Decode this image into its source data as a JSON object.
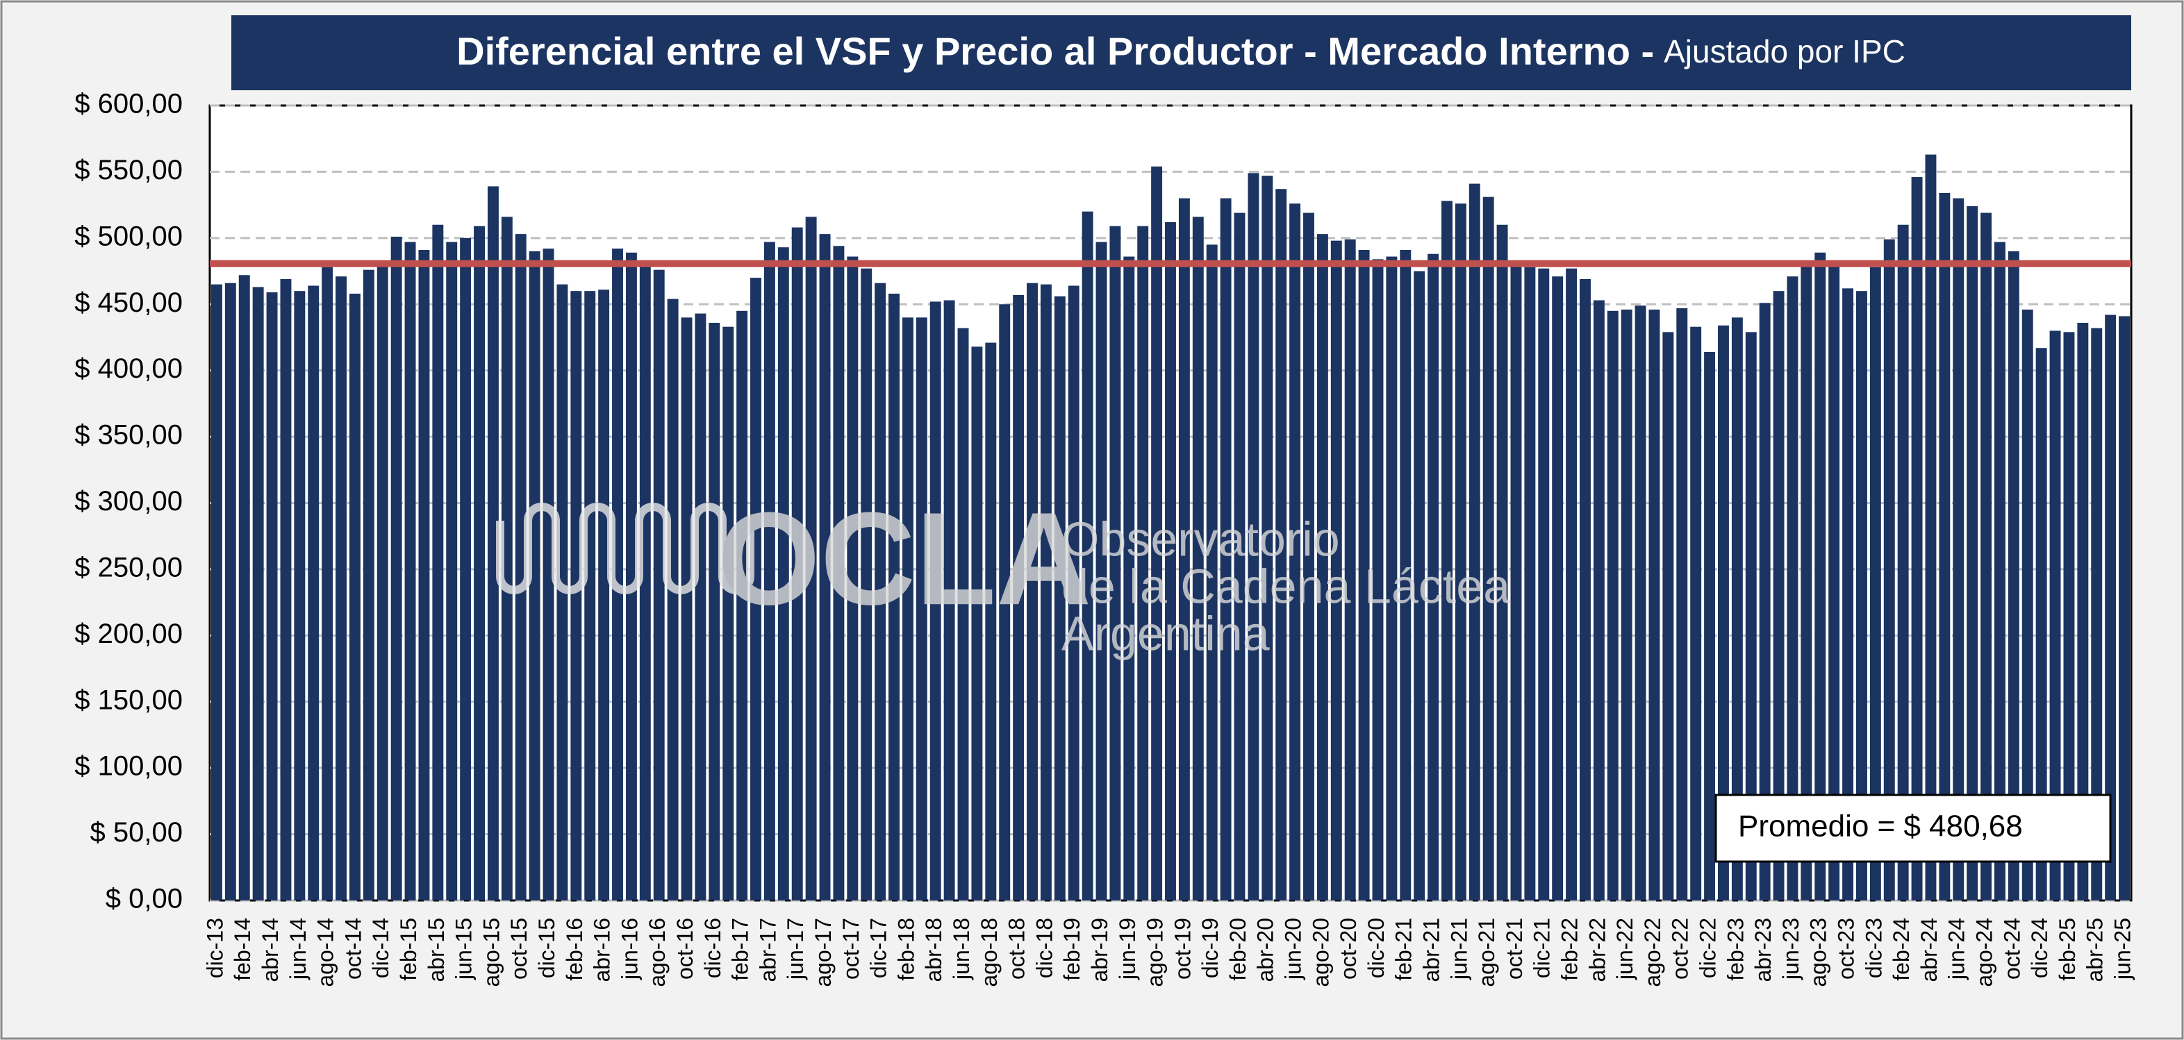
{
  "chart_data": {
    "type": "bar",
    "title": "Diferencial entre el VSF y Precio al Productor - Mercado Interno -",
    "subtitle": "Ajustado por IPC",
    "categories": [
      "dic-13",
      null,
      "feb-14",
      null,
      "abr-14",
      null,
      "jun-14",
      null,
      "ago-14",
      null,
      "oct-14",
      null,
      "dic-14",
      null,
      "feb-15",
      null,
      "abr-15",
      null,
      "jun-15",
      null,
      "ago-15",
      null,
      "oct-15",
      null,
      "dic-15",
      null,
      "feb-16",
      null,
      "abr-16",
      null,
      "jun-16",
      null,
      "ago-16",
      null,
      "oct-16",
      null,
      "dic-16",
      null,
      "feb-17",
      null,
      "abr-17",
      null,
      "jun-17",
      null,
      "ago-17",
      null,
      "oct-17",
      null,
      "dic-17",
      null,
      "feb-18",
      null,
      "abr-18",
      null,
      "jun-18",
      null,
      "ago-18",
      null,
      "oct-18",
      null,
      "dic-18",
      null,
      "feb-19",
      null,
      "abr-19",
      null,
      "jun-19",
      null,
      "ago-19",
      null,
      "oct-19",
      null,
      "dic-19",
      null,
      "feb-20",
      null,
      "abr-20",
      null,
      "jun-20",
      null,
      "ago-20",
      null,
      "oct-20",
      null,
      "dic-20",
      null,
      "feb-21",
      null,
      "abr-21",
      null,
      "jun-21",
      null,
      "ago-21",
      null,
      "oct-21",
      null,
      "dic-21",
      null,
      "feb-22",
      null,
      "abr-22",
      null,
      "jun-22",
      null,
      "ago-22",
      null,
      "oct-22",
      null,
      "dic-22",
      null,
      "feb-23",
      null,
      "abr-23",
      null,
      "jun-23",
      null,
      "ago-23",
      null,
      "oct-23",
      null,
      "dic-23",
      null,
      "feb-24",
      null,
      "abr-24",
      null,
      "jun-24",
      null,
      "ago-24",
      null,
      "oct-24",
      null,
      "dic-24",
      null,
      "feb-25",
      null,
      "abr-25",
      null,
      "jun-25"
    ],
    "values": [
      465,
      466,
      472,
      463,
      459,
      469,
      460,
      464,
      478,
      471,
      458,
      476,
      480,
      501,
      497,
      491,
      510,
      497,
      500,
      509,
      539,
      516,
      503,
      490,
      492,
      465,
      460,
      460,
      461,
      492,
      489,
      482,
      476,
      454,
      440,
      443,
      436,
      433,
      445,
      470,
      497,
      493,
      508,
      516,
      503,
      494,
      486,
      477,
      466,
      458,
      440,
      440,
      452,
      453,
      432,
      418,
      421,
      450,
      457,
      466,
      465,
      456,
      464,
      520,
      497,
      509,
      486,
      509,
      554,
      512,
      530,
      516,
      495,
      530,
      519,
      549,
      547,
      537,
      526,
      519,
      503,
      498,
      499,
      491,
      484,
      486,
      491,
      475,
      488,
      528,
      526,
      541,
      531,
      510,
      480,
      478,
      477,
      471,
      477,
      469,
      453,
      445,
      446,
      449,
      446,
      429,
      447,
      433,
      414,
      434,
      440,
      429,
      451,
      460,
      471,
      482,
      489,
      480,
      462,
      460,
      478,
      499,
      510,
      546,
      563,
      534,
      530,
      524,
      519,
      497,
      490,
      446,
      417,
      430,
      429,
      436,
      432,
      442,
      441
    ],
    "color": "#1c3461",
    "average": 480.68,
    "average_color": "#c0504d",
    "annotation": "Promedio = $ 480,68",
    "ylim": [
      0,
      600
    ],
    "yticks": [
      {
        "value": 0,
        "label": "$ 0,00"
      },
      {
        "value": 50,
        "label": "$ 50,00"
      },
      {
        "value": 100,
        "label": "$ 100,00"
      },
      {
        "value": 150,
        "label": "$ 150,00"
      },
      {
        "value": 200,
        "label": "$ 200,00"
      },
      {
        "value": 250,
        "label": "$ 250,00"
      },
      {
        "value": 300,
        "label": "$ 300,00"
      },
      {
        "value": 350,
        "label": "$ 350,00"
      },
      {
        "value": 400,
        "label": "$ 400,00"
      },
      {
        "value": 450,
        "label": "$ 450,00"
      },
      {
        "value": 500,
        "label": "$ 500,00"
      },
      {
        "value": 550,
        "label": "$ 550,00"
      },
      {
        "value": 600,
        "label": "$ 600,00"
      }
    ],
    "grid": true,
    "watermark": {
      "logo": "OCLA",
      "line1": "Observatorio",
      "line2": "de la Cadena Láctea",
      "line3": "Argentina"
    }
  }
}
